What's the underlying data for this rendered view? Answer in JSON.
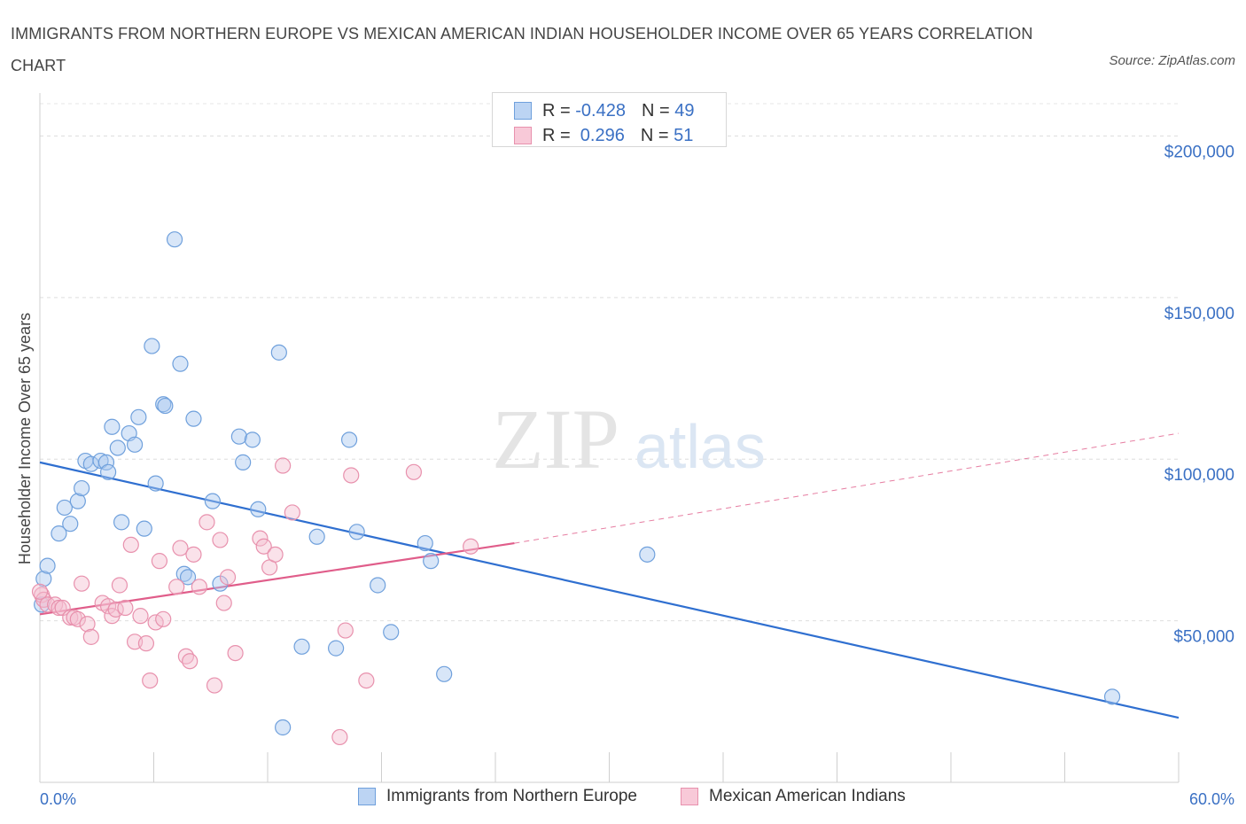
{
  "header": {
    "title": "IMMIGRANTS FROM NORTHERN EUROPE VS MEXICAN AMERICAN INDIAN HOUSEHOLDER INCOME OVER 65 YEARS CORRELATION CHART",
    "source": "Source: ZipAtlas.com"
  },
  "watermark": {
    "zip": "ZIP",
    "atlas": "atlas"
  },
  "legend": {
    "rows": [
      {
        "r_label": "R = ",
        "r_value": "-0.428",
        "n_label": "N = ",
        "n_value": "49"
      },
      {
        "r_label": "R = ",
        "r_value": " 0.296",
        "n_label": "N = ",
        "n_value": "51"
      }
    ]
  },
  "colors": {
    "blue": "#6fa0dc",
    "blue_fill": "#a9c8f0",
    "blue_line": "#2f6fd0",
    "pink": "#e891ad",
    "pink_fill": "#f5bfd0",
    "pink_line": "#e05d8a",
    "axis_text": "#3a70c4",
    "grid": "#dddddd"
  },
  "chart_data": {
    "type": "scatter",
    "title": "IMMIGRANTS FROM NORTHERN EUROPE VS MEXICAN AMERICAN INDIAN HOUSEHOLDER INCOME OVER 65 YEARS CORRELATION CHART",
    "xlabel": "",
    "ylabel": "Householder Income Over 65 years",
    "xlim": [
      0,
      60
    ],
    "ylim": [
      0,
      210000
    ],
    "x_tick_labels": [
      "0.0%",
      "60.0%"
    ],
    "y_ticks": [
      50000,
      100000,
      150000,
      200000
    ],
    "y_tick_labels": [
      "$50,000",
      "$100,000",
      "$150,000",
      "$200,000"
    ],
    "grid": true,
    "legend_position": "bottom",
    "series": [
      {
        "name": "Immigrants from Northern Europe",
        "color": "#6fa0dc",
        "points": [
          [
            0.1,
            55000
          ],
          [
            0.2,
            63000
          ],
          [
            0.4,
            67000
          ],
          [
            1.0,
            77000
          ],
          [
            1.3,
            85000
          ],
          [
            1.6,
            80000
          ],
          [
            2.0,
            87000
          ],
          [
            2.2,
            91000
          ],
          [
            2.4,
            99500
          ],
          [
            2.7,
            98500
          ],
          [
            3.2,
            99500
          ],
          [
            3.5,
            99000
          ],
          [
            3.6,
            96000
          ],
          [
            3.8,
            110000
          ],
          [
            4.1,
            103500
          ],
          [
            4.3,
            80500
          ],
          [
            4.7,
            108000
          ],
          [
            5.0,
            104500
          ],
          [
            5.2,
            113000
          ],
          [
            5.5,
            78500
          ],
          [
            5.9,
            135000
          ],
          [
            6.1,
            92500
          ],
          [
            6.5,
            117000
          ],
          [
            6.6,
            116500
          ],
          [
            7.1,
            168000
          ],
          [
            7.4,
            129500
          ],
          [
            7.6,
            64500
          ],
          [
            7.8,
            63500
          ],
          [
            8.1,
            112500
          ],
          [
            9.1,
            87000
          ],
          [
            9.5,
            61500
          ],
          [
            10.5,
            107000
          ],
          [
            10.7,
            99000
          ],
          [
            11.2,
            106000
          ],
          [
            11.5,
            84500
          ],
          [
            12.6,
            133000
          ],
          [
            12.8,
            17000
          ],
          [
            13.8,
            42000
          ],
          [
            14.6,
            76000
          ],
          [
            15.6,
            41500
          ],
          [
            16.3,
            106000
          ],
          [
            16.7,
            77500
          ],
          [
            17.8,
            61000
          ],
          [
            18.5,
            46500
          ],
          [
            20.3,
            74000
          ],
          [
            20.6,
            68500
          ],
          [
            21.3,
            33500
          ],
          [
            32.0,
            70500
          ],
          [
            56.5,
            26500
          ]
        ]
      },
      {
        "name": "Mexican American Indians",
        "color": "#e891ad",
        "points": [
          [
            0.1,
            58000
          ],
          [
            0.2,
            56500
          ],
          [
            0.4,
            55000
          ],
          [
            0.8,
            55000
          ],
          [
            1.0,
            54000
          ],
          [
            1.2,
            54000
          ],
          [
            1.6,
            51000
          ],
          [
            1.8,
            51000
          ],
          [
            2.0,
            50500
          ],
          [
            2.2,
            61500
          ],
          [
            2.5,
            49000
          ],
          [
            2.7,
            45000
          ],
          [
            3.3,
            55500
          ],
          [
            3.6,
            54500
          ],
          [
            3.8,
            51500
          ],
          [
            4.0,
            53500
          ],
          [
            4.2,
            61000
          ],
          [
            4.5,
            54000
          ],
          [
            4.8,
            73500
          ],
          [
            5.0,
            43500
          ],
          [
            5.3,
            51500
          ],
          [
            5.6,
            43000
          ],
          [
            5.8,
            31500
          ],
          [
            6.1,
            49500
          ],
          [
            6.3,
            68500
          ],
          [
            6.5,
            50500
          ],
          [
            7.2,
            60500
          ],
          [
            7.4,
            72500
          ],
          [
            7.7,
            39000
          ],
          [
            7.9,
            37500
          ],
          [
            8.1,
            70500
          ],
          [
            8.4,
            60500
          ],
          [
            8.8,
            80500
          ],
          [
            9.2,
            30000
          ],
          [
            9.5,
            75000
          ],
          [
            9.7,
            55500
          ],
          [
            9.9,
            63500
          ],
          [
            10.3,
            40000
          ],
          [
            11.6,
            75500
          ],
          [
            11.8,
            73000
          ],
          [
            12.1,
            66500
          ],
          [
            12.4,
            70500
          ],
          [
            12.8,
            98000
          ],
          [
            13.3,
            83500
          ],
          [
            15.8,
            14000
          ],
          [
            16.1,
            47000
          ],
          [
            16.4,
            95000
          ],
          [
            17.2,
            31500
          ],
          [
            19.7,
            96000
          ],
          [
            22.7,
            73000
          ],
          [
            0.0,
            59000
          ]
        ]
      }
    ],
    "trend_lines": [
      {
        "series": "Immigrants from Northern Europe",
        "from": [
          0,
          99000
        ],
        "to": [
          60,
          20000
        ],
        "style": "solid"
      },
      {
        "series": "Mexican American Indians",
        "from": [
          0,
          52000
        ],
        "to": [
          25,
          74000
        ],
        "style": "solid"
      },
      {
        "series": "Mexican American Indians",
        "from": [
          25,
          74000
        ],
        "to": [
          60,
          108000
        ],
        "style": "dashed"
      }
    ]
  },
  "bottom_legend": {
    "items": [
      {
        "label": "Immigrants from Northern Europe"
      },
      {
        "label": "Mexican American Indians"
      }
    ]
  }
}
